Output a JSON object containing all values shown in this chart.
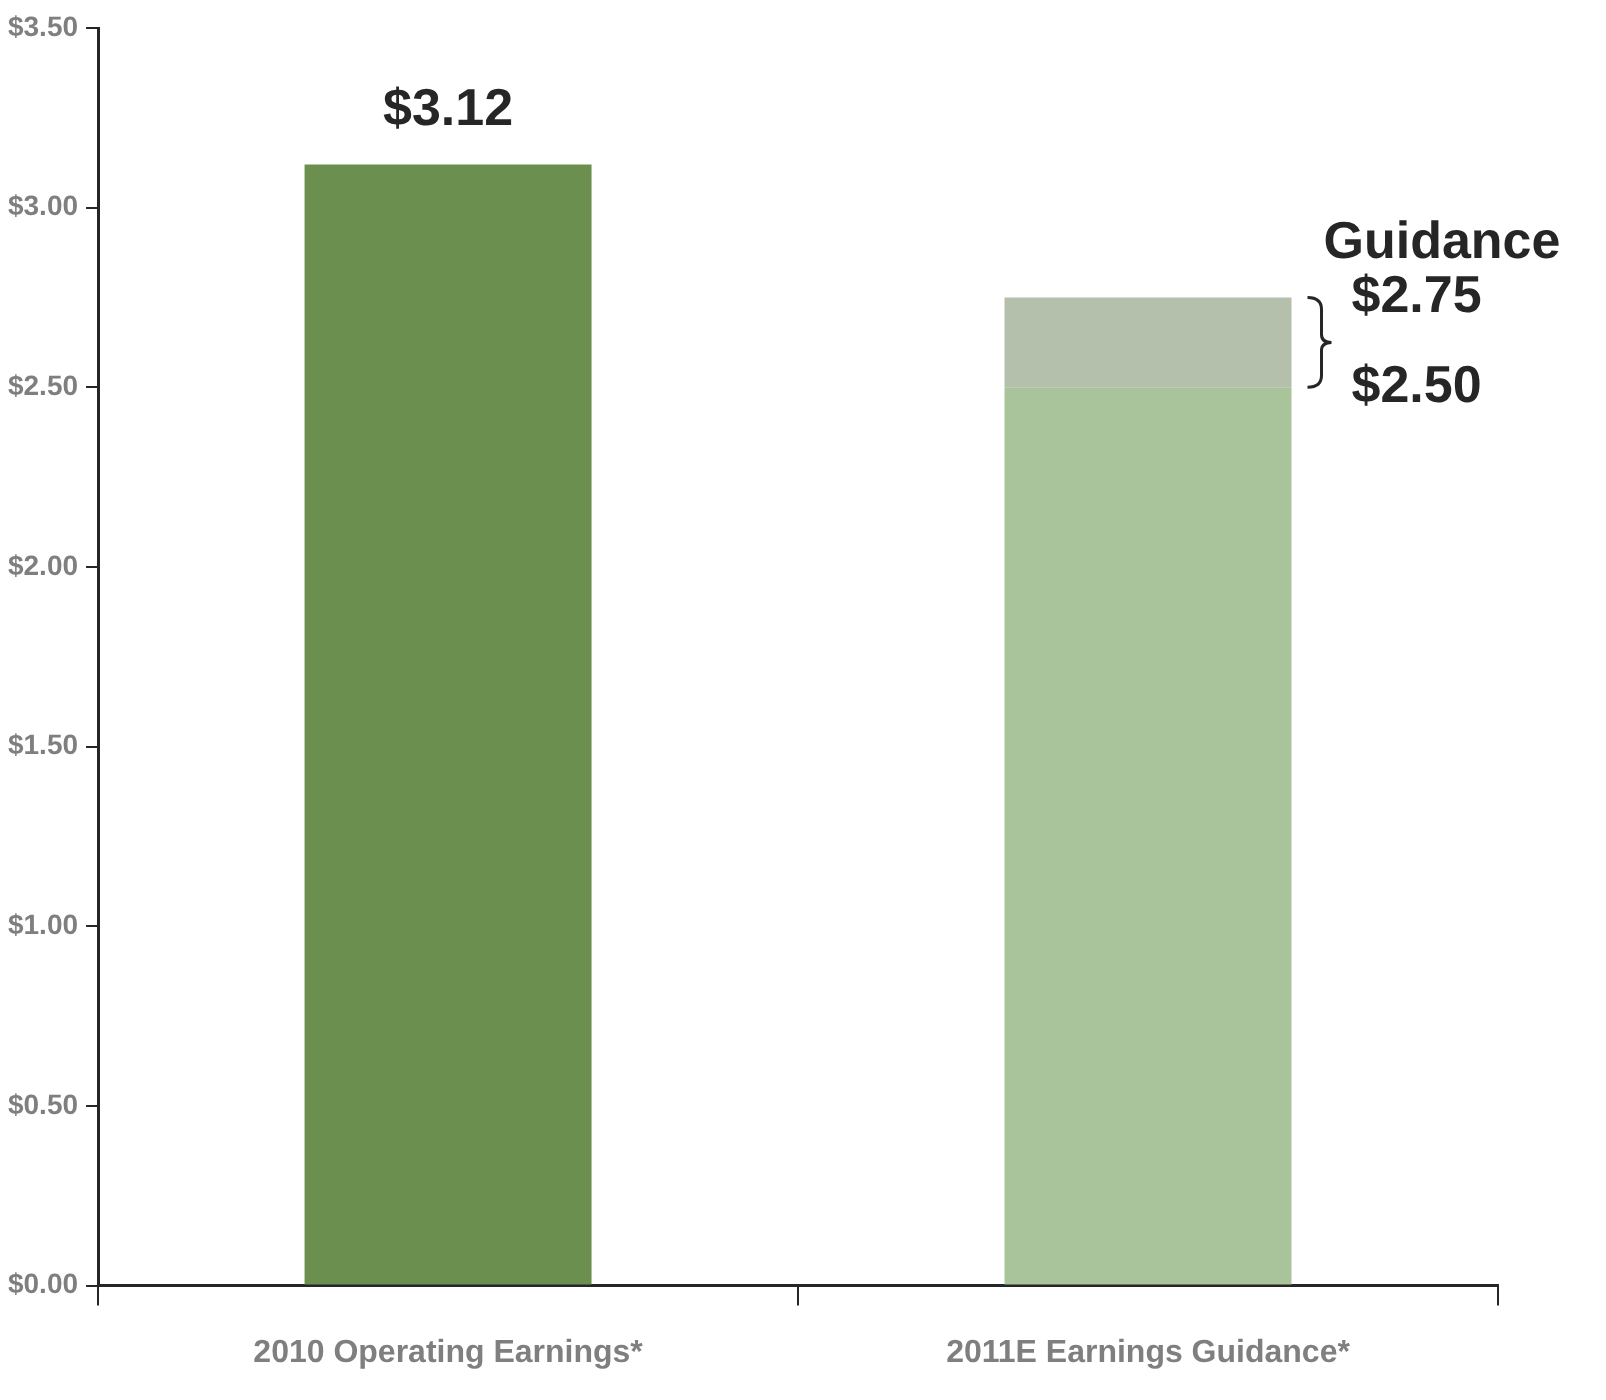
{
  "chart_data": {
    "type": "bar",
    "stacked": true,
    "categories": [
      "2010 Operating Earnings*",
      "2011E Earnings Guidance*"
    ],
    "series": [
      {
        "colors": [
          "#6a8f4e",
          "#a9c49a"
        ],
        "values": [
          3.12,
          2.5
        ],
        "value_labels": [
          "$3.12",
          null
        ]
      },
      {
        "color": "#b4bfac",
        "values": [
          null,
          0.25
        ]
      }
    ],
    "annotations": [
      "Guidance",
      "$2.75",
      "$2.50"
    ],
    "ylim": [
      0,
      3.5
    ],
    "yticks": [
      {
        "value": 0,
        "label": "$0.00"
      },
      {
        "value": 0.5,
        "label": "$0.50"
      },
      {
        "value": 1,
        "label": "$1.00"
      },
      {
        "value": 1.5,
        "label": "$1.50"
      },
      {
        "value": 2,
        "label": "$2.00"
      },
      {
        "value": 2.5,
        "label": "$2.50"
      },
      {
        "value": 3,
        "label": "$3.00"
      },
      {
        "value": 3.5,
        "label": "$3.50"
      }
    ],
    "grid": false,
    "legend": false
  }
}
